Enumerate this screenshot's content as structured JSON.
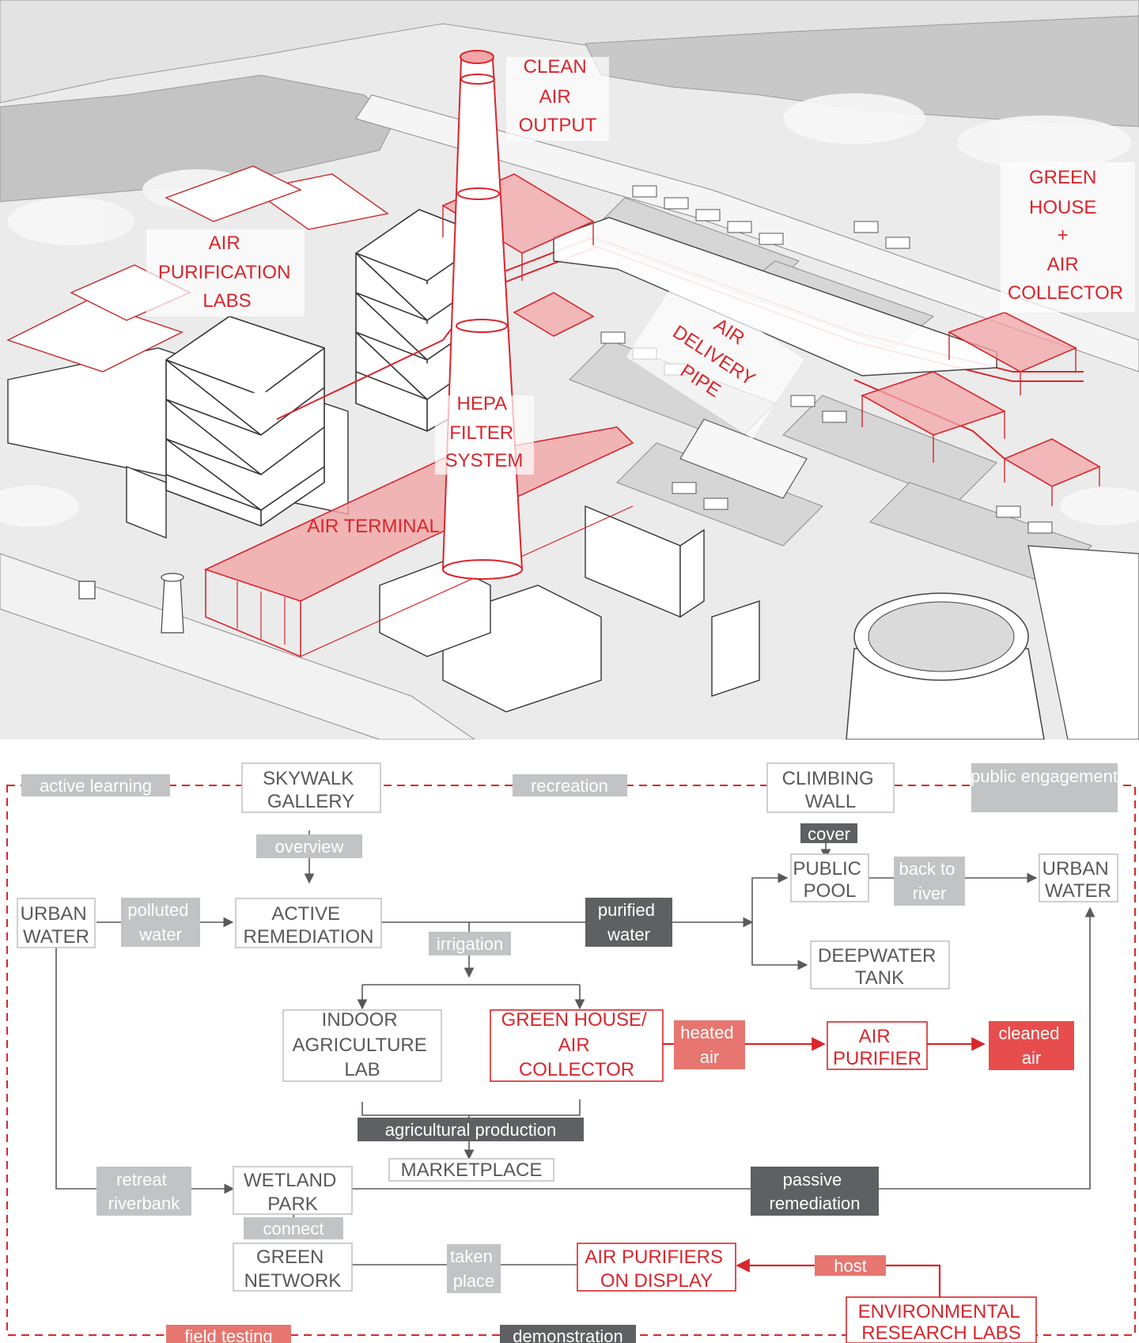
{
  "axo": {
    "labels": [
      {
        "id": "clean-air-output",
        "lines": [
          "CLEAN",
          "AIR",
          "OUTPUT"
        ]
      },
      {
        "id": "green-house-air-collector",
        "lines": [
          "GREEN",
          "HOUSE",
          "+",
          "AIR",
          "COLLECTOR"
        ]
      },
      {
        "id": "air-purification-labs",
        "lines": [
          "AIR",
          "PURIFICATION",
          "LABS"
        ]
      },
      {
        "id": "air-delivery-pipe",
        "lines": [
          "AIR",
          "DELIVERY",
          "PIPE"
        ]
      },
      {
        "id": "hepa-filter-system",
        "lines": [
          "HEPA",
          "FILTER",
          "SYSTEM"
        ]
      },
      {
        "id": "air-terminal",
        "lines": [
          "AIR TERMINAL"
        ]
      }
    ]
  },
  "flow": {
    "zones": [
      "active learning",
      "recreation",
      "public engagement",
      "field testing",
      "demonstration"
    ],
    "nodes": [
      {
        "id": "skywalk",
        "lines": [
          "SKYWALK",
          "GALLERY"
        ],
        "style": "gray"
      },
      {
        "id": "climbing",
        "lines": [
          "CLIMBING",
          "WALL"
        ],
        "style": "gray"
      },
      {
        "id": "urban-water-1",
        "lines": [
          "URBAN",
          "WATER"
        ],
        "style": "gray"
      },
      {
        "id": "active-remediation",
        "lines": [
          "ACTIVE",
          "REMEDIATION"
        ],
        "style": "gray"
      },
      {
        "id": "public-pool",
        "lines": [
          "PUBLIC",
          "POOL"
        ],
        "style": "gray"
      },
      {
        "id": "urban-water-2",
        "lines": [
          "URBAN",
          "WATER"
        ],
        "style": "gray"
      },
      {
        "id": "deepwater",
        "lines": [
          "DEEPWATER",
          "TANK"
        ],
        "style": "gray"
      },
      {
        "id": "indoor-ag",
        "lines": [
          "INDOOR",
          "AGRICULTURE",
          "LAB"
        ],
        "style": "gray"
      },
      {
        "id": "greenhouse",
        "lines": [
          "GREEN HOUSE/",
          "AIR",
          "COLLECTOR"
        ],
        "style": "red"
      },
      {
        "id": "air-purifier",
        "lines": [
          "AIR",
          "PURIFIER"
        ],
        "style": "red"
      },
      {
        "id": "marketplace",
        "lines": [
          "MARKETPLACE"
        ],
        "style": "gray"
      },
      {
        "id": "wetland",
        "lines": [
          "WETLAND",
          "PARK"
        ],
        "style": "gray"
      },
      {
        "id": "green-network",
        "lines": [
          "GREEN",
          "NETWORK"
        ],
        "style": "gray"
      },
      {
        "id": "purifiers-display",
        "lines": [
          "AIR PURIFIERS",
          "ON DISPLAY"
        ],
        "style": "red"
      },
      {
        "id": "env-labs",
        "lines": [
          "ENVIRONMENTAL",
          "RESEARCH LABS"
        ],
        "style": "red"
      }
    ],
    "tags": [
      {
        "id": "overview",
        "lines": [
          "overview"
        ],
        "style": "light"
      },
      {
        "id": "cover",
        "lines": [
          "cover"
        ],
        "style": "dark"
      },
      {
        "id": "polluted-water",
        "lines": [
          "polluted",
          "water"
        ],
        "style": "light"
      },
      {
        "id": "back-to-river",
        "lines": [
          "back to",
          "river"
        ],
        "style": "light"
      },
      {
        "id": "purified-water",
        "lines": [
          "purified",
          "water"
        ],
        "style": "dark"
      },
      {
        "id": "irrigation",
        "lines": [
          "irrigation"
        ],
        "style": "light"
      },
      {
        "id": "heated-air",
        "lines": [
          "heated",
          "air"
        ],
        "style": "salmon"
      },
      {
        "id": "cleaned-air",
        "lines": [
          "cleaned",
          "air"
        ],
        "style": "redfill"
      },
      {
        "id": "agricultural-production",
        "lines": [
          "agricultural production"
        ],
        "style": "dark"
      },
      {
        "id": "retreat-riverbank",
        "lines": [
          "retreat",
          "riverbank"
        ],
        "style": "light"
      },
      {
        "id": "passive-remediation",
        "lines": [
          "passive",
          "remediation"
        ],
        "style": "dark"
      },
      {
        "id": "connect",
        "lines": [
          "connect"
        ],
        "style": "light"
      },
      {
        "id": "taken-place",
        "lines": [
          "taken",
          "place"
        ],
        "style": "light"
      },
      {
        "id": "host",
        "lines": [
          "host"
        ],
        "style": "salmon"
      }
    ]
  },
  "colors": {
    "accent_red": "#d8262c",
    "salmon": "#e6766f",
    "dark_gray": "#5f6062",
    "light_gray": "#c2c3c5",
    "text_gray": "#58595b",
    "ground": "#c9c9ca"
  }
}
